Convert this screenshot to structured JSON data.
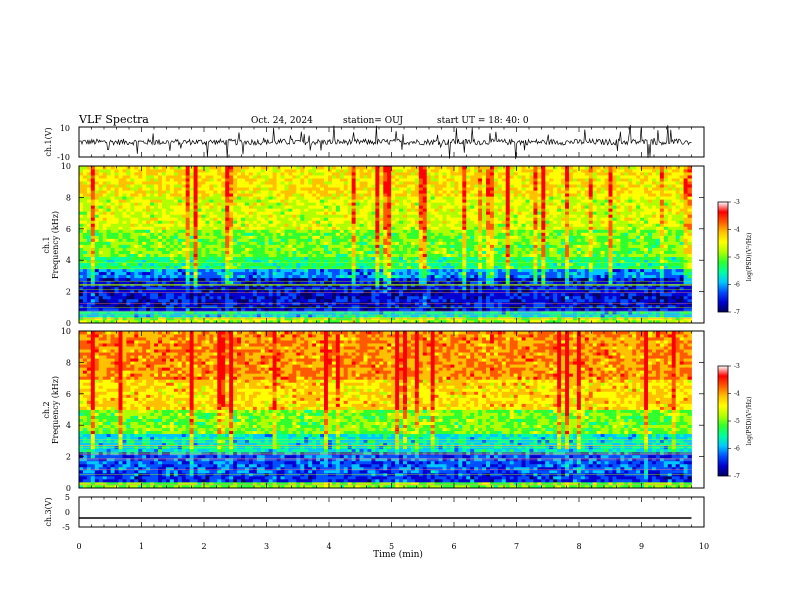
{
  "header": {
    "title": "VLF Spectra",
    "date": "Oct. 24, 2024",
    "station": "station= OUJ",
    "start": "start  UT =   18: 40: 0"
  },
  "colors": {
    "background": "#ffffff",
    "axis": "#000000",
    "colormap": [
      "#000060",
      "#0000d0",
      "#0050ff",
      "#00c8ff",
      "#00ffa0",
      "#30ff30",
      "#b0ff00",
      "#ffff00",
      "#ffc000",
      "#ff5a00",
      "#ff0000",
      "#ffffff"
    ]
  },
  "chart_data": [
    {
      "id": "ch1-waveform",
      "type": "line",
      "ylabel": "ch.1(V)",
      "ylim": [
        -10,
        10
      ],
      "yticks": [
        "10",
        "-10"
      ],
      "xlim": [
        0,
        10
      ],
      "data_extent_min": 9.8,
      "baseline": 0,
      "note_values": "noise amplitude approx 2 V with spikes"
    },
    {
      "id": "ch1-spectrogram",
      "type": "heatmap",
      "ylabel": "ch.1 Frequency (kHz)",
      "ylabel_line1": "ch.1",
      "ylabel_line2": "Frequency  (kHz)",
      "ylim": [
        0,
        10
      ],
      "yticks": [
        "0",
        "2",
        "4",
        "6",
        "8",
        "10"
      ],
      "xlim": [
        0,
        10
      ],
      "colorbar": {
        "label": "log(PSD)(V²/Hz)",
        "range": [
          -7,
          -3
        ],
        "ticks": [
          "-3",
          "-4",
          "-5",
          "-6",
          "-7"
        ]
      },
      "band_levels_log_psd": [
        {
          "freq_khz": [
            0.0,
            0.3
          ],
          "level": -4.6
        },
        {
          "freq_khz": [
            0.3,
            0.8
          ],
          "level": -5.6
        },
        {
          "freq_khz": [
            0.8,
            2.8
          ],
          "level": -6.6
        },
        {
          "freq_khz": [
            2.8,
            3.4
          ],
          "level": -6.0
        },
        {
          "freq_khz": [
            3.4,
            4.2
          ],
          "level": -5.2
        },
        {
          "freq_khz": [
            4.2,
            6.0
          ],
          "level": -4.8
        },
        {
          "freq_khz": [
            6.0,
            8.0
          ],
          "level": -4.4
        },
        {
          "freq_khz": [
            8.0,
            10.0
          ],
          "level": -4.1
        }
      ]
    },
    {
      "id": "ch2-spectrogram",
      "type": "heatmap",
      "ylabel": "ch.2 Frequency (kHz)",
      "ylabel_line1": "ch.2",
      "ylabel_line2": "Frequency  (kHz)",
      "ylim": [
        0,
        10
      ],
      "yticks": [
        "0",
        "2",
        "4",
        "6",
        "8",
        "10"
      ],
      "xlim": [
        0,
        10
      ],
      "colorbar": {
        "label": "log(PSD)(V²/Hz)",
        "range": [
          -7,
          -3
        ],
        "ticks": [
          "-3",
          "-4",
          "-5",
          "-6",
          "-7"
        ]
      },
      "band_levels_log_psd": [
        {
          "freq_khz": [
            0.0,
            0.3
          ],
          "level": -4.8
        },
        {
          "freq_khz": [
            0.3,
            1.0
          ],
          "level": -6.4
        },
        {
          "freq_khz": [
            1.0,
            2.4
          ],
          "level": -6.2
        },
        {
          "freq_khz": [
            2.4,
            3.5
          ],
          "level": -5.6
        },
        {
          "freq_khz": [
            3.5,
            5.0
          ],
          "level": -4.8
        },
        {
          "freq_khz": [
            5.0,
            7.0
          ],
          "level": -4.0
        },
        {
          "freq_khz": [
            7.0,
            10.0
          ],
          "level": -3.6
        }
      ]
    },
    {
      "id": "ch3-waveform",
      "type": "line",
      "ylabel": "ch.3(V)",
      "ylim": [
        -5,
        5
      ],
      "yticks": [
        "5",
        "0",
        "-5"
      ],
      "xlim": [
        0,
        10
      ],
      "constant_value": -2,
      "xlabel": "Time  (min)",
      "xticks": [
        "0",
        "1",
        "2",
        "3",
        "4",
        "5",
        "6",
        "7",
        "8",
        "9",
        "10"
      ]
    }
  ]
}
